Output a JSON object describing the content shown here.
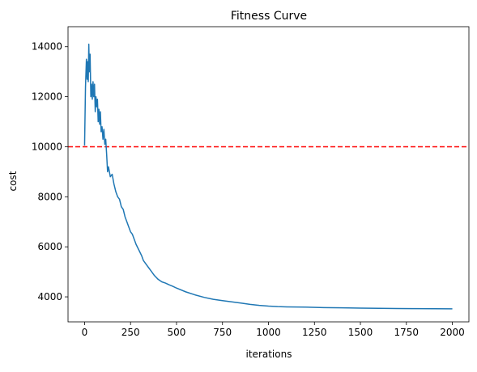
{
  "chart_data": {
    "type": "line",
    "title": "Fitness Curve",
    "xlabel": "iterations",
    "ylabel": "cost",
    "xlim": [
      -90,
      2090
    ],
    "ylim": [
      3000,
      14800
    ],
    "xticks": [
      0,
      250,
      500,
      750,
      1000,
      1250,
      1500,
      1750,
      2000
    ],
    "yticks": [
      4000,
      6000,
      8000,
      10000,
      12000,
      14000
    ],
    "grid": false,
    "legend": "none",
    "series": [
      {
        "color": "#1f77b4",
        "x": [
          0,
          5,
          10,
          14,
          17,
          20,
          23,
          26,
          30,
          34,
          38,
          42,
          46,
          50,
          54,
          58,
          62,
          66,
          70,
          74,
          78,
          82,
          86,
          90,
          95,
          100,
          105,
          110,
          115,
          120,
          125,
          130,
          140,
          150,
          160,
          170,
          180,
          190,
          200,
          210,
          220,
          230,
          240,
          250,
          260,
          270,
          280,
          290,
          300,
          310,
          320,
          330,
          340,
          350,
          360,
          380,
          400,
          420,
          440,
          460,
          480,
          500,
          550,
          600,
          650,
          700,
          750,
          800,
          850,
          900,
          950,
          1000,
          1050,
          1100,
          1200,
          1300,
          1400,
          1500,
          1600,
          1700,
          1800,
          1900,
          2000
        ],
        "y": [
          10050,
          12400,
          13500,
          12700,
          13400,
          12600,
          14100,
          13000,
          13700,
          12000,
          12500,
          11900,
          12600,
          12000,
          12500,
          11400,
          12000,
          11600,
          11900,
          11000,
          11500,
          10900,
          11400,
          10600,
          10800,
          10300,
          10700,
          10100,
          10300,
          9700,
          9000,
          9200,
          8800,
          8900,
          8500,
          8200,
          8000,
          7900,
          7600,
          7500,
          7200,
          7000,
          6800,
          6600,
          6500,
          6300,
          6100,
          5950,
          5800,
          5650,
          5450,
          5350,
          5250,
          5150,
          5050,
          4850,
          4700,
          4600,
          4550,
          4480,
          4420,
          4350,
          4200,
          4080,
          3980,
          3900,
          3850,
          3800,
          3750,
          3700,
          3660,
          3630,
          3610,
          3600,
          3590,
          3570,
          3560,
          3550,
          3540,
          3535,
          3530,
          3525,
          3520
        ]
      }
    ],
    "reference_line": {
      "y": 10000,
      "color": "#ff0000",
      "style": "dashed"
    }
  }
}
